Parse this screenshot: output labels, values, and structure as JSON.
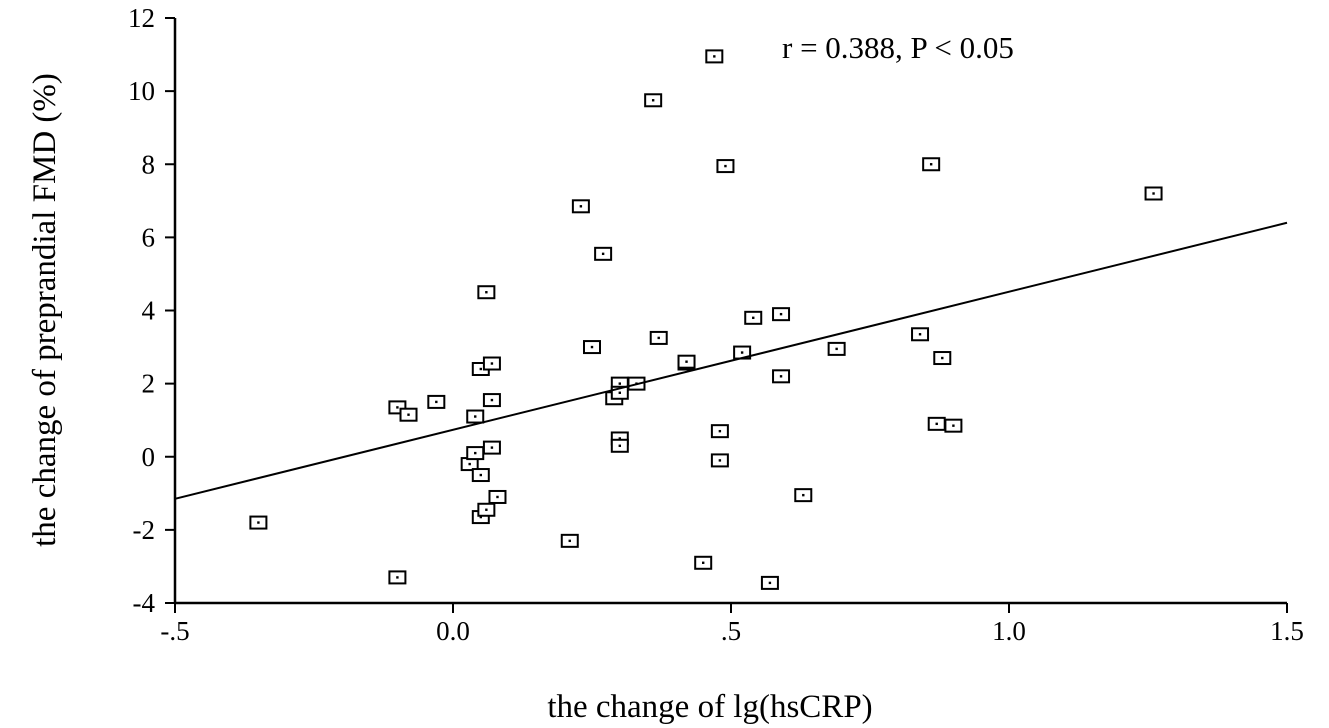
{
  "chart_data": {
    "type": "scatter",
    "xlabel": "the change of lg(hsCRP)",
    "ylabel": "the change of preprandial FMD (%)",
    "annotation": "r = 0.388, P < 0.05",
    "xlim": [
      -0.5,
      1.5
    ],
    "ylim": [
      -4,
      12
    ],
    "xticks": [
      {
        "value": -0.5,
        "label": "-.5"
      },
      {
        "value": 0.0,
        "label": "0.0"
      },
      {
        "value": 0.5,
        "label": ".5"
      },
      {
        "value": 1.0,
        "label": "1.0"
      },
      {
        "value": 1.5,
        "label": "1.5"
      }
    ],
    "yticks": [
      {
        "value": -4,
        "label": "-4"
      },
      {
        "value": -2,
        "label": "-2"
      },
      {
        "value": 0,
        "label": "0"
      },
      {
        "value": 2,
        "label": "2"
      },
      {
        "value": 4,
        "label": "4"
      },
      {
        "value": 6,
        "label": "6"
      },
      {
        "value": 8,
        "label": "8"
      },
      {
        "value": 10,
        "label": "10"
      },
      {
        "value": 12,
        "label": "12"
      }
    ],
    "grid": false,
    "marker": "open-square",
    "points": [
      {
        "x": -0.35,
        "y": -1.8
      },
      {
        "x": -0.1,
        "y": -3.3
      },
      {
        "x": -0.1,
        "y": 1.35
      },
      {
        "x": -0.08,
        "y": 1.15
      },
      {
        "x": -0.03,
        "y": 1.5
      },
      {
        "x": 0.03,
        "y": -0.2
      },
      {
        "x": 0.04,
        "y": 0.1
      },
      {
        "x": 0.04,
        "y": 1.1
      },
      {
        "x": 0.05,
        "y": -0.5
      },
      {
        "x": 0.05,
        "y": -1.65
      },
      {
        "x": 0.05,
        "y": 2.4
      },
      {
        "x": 0.06,
        "y": 4.5
      },
      {
        "x": 0.06,
        "y": -1.45
      },
      {
        "x": 0.07,
        "y": 1.55
      },
      {
        "x": 0.07,
        "y": 0.25
      },
      {
        "x": 0.07,
        "y": 2.55
      },
      {
        "x": 0.08,
        "y": -1.1
      },
      {
        "x": 0.21,
        "y": -2.3
      },
      {
        "x": 0.23,
        "y": 6.85
      },
      {
        "x": 0.25,
        "y": 3.0
      },
      {
        "x": 0.27,
        "y": 5.55
      },
      {
        "x": 0.29,
        "y": 1.6
      },
      {
        "x": 0.3,
        "y": 2.0
      },
      {
        "x": 0.3,
        "y": 1.75
      },
      {
        "x": 0.3,
        "y": 0.5
      },
      {
        "x": 0.3,
        "y": 0.3
      },
      {
        "x": 0.33,
        "y": 2.0
      },
      {
        "x": 0.36,
        "y": 9.75
      },
      {
        "x": 0.37,
        "y": 3.25
      },
      {
        "x": 0.42,
        "y": 2.55
      },
      {
        "x": 0.42,
        "y": 2.6
      },
      {
        "x": 0.45,
        "y": -2.9
      },
      {
        "x": 0.47,
        "y": 10.95
      },
      {
        "x": 0.48,
        "y": 0.7
      },
      {
        "x": 0.48,
        "y": -0.1
      },
      {
        "x": 0.49,
        "y": 7.95
      },
      {
        "x": 0.52,
        "y": 2.85
      },
      {
        "x": 0.54,
        "y": 3.8
      },
      {
        "x": 0.57,
        "y": -3.45
      },
      {
        "x": 0.59,
        "y": 2.2
      },
      {
        "x": 0.59,
        "y": 3.9
      },
      {
        "x": 0.63,
        "y": -1.05
      },
      {
        "x": 0.69,
        "y": 2.95
      },
      {
        "x": 0.84,
        "y": 3.35
      },
      {
        "x": 0.86,
        "y": 8.0
      },
      {
        "x": 0.87,
        "y": 0.9
      },
      {
        "x": 0.88,
        "y": 2.7
      },
      {
        "x": 0.9,
        "y": 0.85
      },
      {
        "x": 1.26,
        "y": 7.2
      }
    ],
    "regression_line": {
      "x": [
        -0.5,
        1.5
      ],
      "y": [
        -1.15,
        6.4
      ]
    }
  }
}
